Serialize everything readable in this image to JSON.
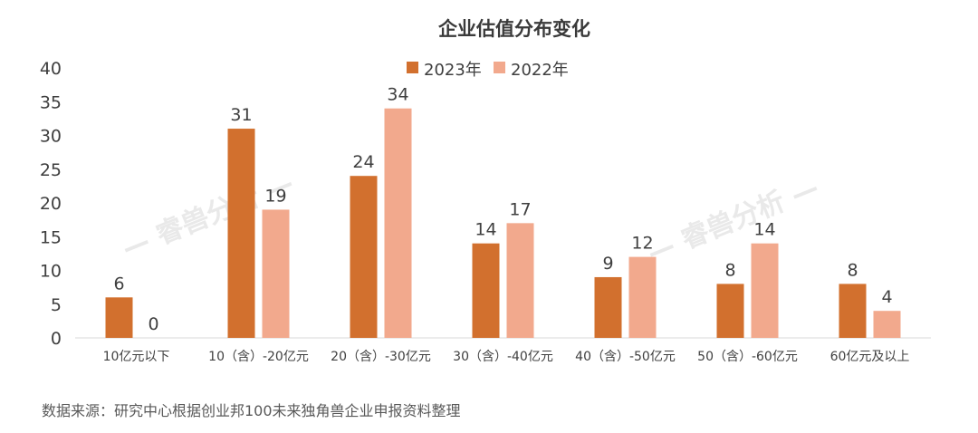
{
  "chart_data": {
    "type": "bar",
    "title": "企业估值分布变化",
    "categories": [
      "10亿元以下",
      "10（含）-20亿元",
      "20（含）-30亿元",
      "30（含）-40亿元",
      "40（含）-50亿元",
      "50（含）-60亿元",
      "60亿元及以上"
    ],
    "series": [
      {
        "name": "2023年",
        "color": "#d2702e",
        "values": [
          6,
          31,
          24,
          14,
          9,
          8,
          8
        ]
      },
      {
        "name": "2022年",
        "color": "#f2a98d",
        "values": [
          0,
          19,
          34,
          17,
          12,
          14,
          4
        ]
      }
    ],
    "ylim": [
      0,
      40
    ],
    "yticks": [
      0,
      5,
      10,
      15,
      20,
      25,
      30,
      35,
      40
    ],
    "xlabel": "",
    "ylabel": "",
    "legend_position": "top-center",
    "grid": false
  },
  "watermark": "— 睿兽分析 —",
  "source_note": "数据来源：研究中心根据创业邦100未来独角兽企业申报资料整理"
}
